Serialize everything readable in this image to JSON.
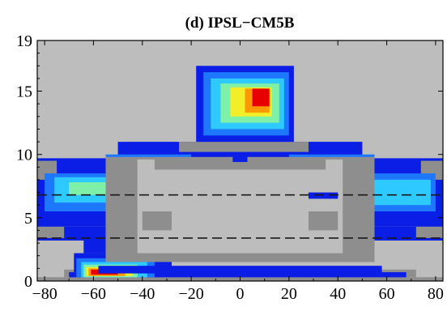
{
  "chart_data": {
    "type": "heatmap",
    "title": "(d) IPSL−CM5B",
    "xlabel": "",
    "ylabel": "",
    "xlim": [
      -83,
      83
    ],
    "ylim": [
      0,
      19
    ],
    "x_ticks": [
      -80,
      -60,
      -40,
      -20,
      0,
      20,
      40,
      60,
      80
    ],
    "x_tick_labels": [
      "−80",
      "−60",
      "−40",
      "−20",
      "0",
      "20",
      "40",
      "60",
      "80"
    ],
    "y_ticks": [
      0,
      5,
      10,
      15,
      19
    ],
    "y_tick_labels": [
      "0",
      "5",
      "10",
      "15",
      "19"
    ],
    "reference_lines": [
      {
        "y": 6.8,
        "style": "dashed"
      },
      {
        "y": 3.4,
        "style": "dashed"
      }
    ],
    "background_level": 0,
    "levels": [
      {
        "level": 0,
        "color": "#bdbdbd"
      },
      {
        "level": 1,
        "color": "#8e8e8e"
      },
      {
        "level": 2,
        "color": "#0a1ee6"
      },
      {
        "level": 3,
        "color": "#1e78ff"
      },
      {
        "level": 4,
        "color": "#2ec9ff"
      },
      {
        "level": 5,
        "color": "#7ff0a8"
      },
      {
        "level": 6,
        "color": "#f2ee2a"
      },
      {
        "level": 7,
        "color": "#ff9900"
      },
      {
        "level": 8,
        "color": "#e60000"
      }
    ],
    "regions": [
      {
        "level": 1,
        "x": [
          -83,
          83
        ],
        "y": [
          0.0,
          0.3
        ]
      },
      {
        "level": 1,
        "x": [
          -72,
          72
        ],
        "y": [
          0.3,
          0.9
        ]
      },
      {
        "level": 2,
        "x": [
          -70,
          68
        ],
        "y": [
          0.3,
          0.7
        ]
      },
      {
        "level": 2,
        "x": [
          -68,
          -28
        ],
        "y": [
          0.7,
          2.2
        ]
      },
      {
        "level": 3,
        "x": [
          -67,
          -35
        ],
        "y": [
          0.3,
          1.8
        ]
      },
      {
        "level": 4,
        "x": [
          -65,
          -38
        ],
        "y": [
          0.3,
          1.5
        ]
      },
      {
        "level": 5,
        "x": [
          -64,
          -42
        ],
        "y": [
          0.3,
          1.3
        ]
      },
      {
        "level": 6,
        "x": [
          -63,
          -44
        ],
        "y": [
          0.4,
          1.1
        ]
      },
      {
        "level": 7,
        "x": [
          -62,
          -47
        ],
        "y": [
          0.4,
          1.0
        ]
      },
      {
        "level": 8,
        "x": [
          -61,
          -50
        ],
        "y": [
          0.5,
          0.9
        ]
      },
      {
        "level": 2,
        "x": [
          -83,
          83
        ],
        "y": [
          3.2,
          4.3
        ]
      },
      {
        "level": 2,
        "x": [
          -64,
          -54
        ],
        "y": [
          2.2,
          3.2
        ]
      },
      {
        "level": 1,
        "x": [
          -83,
          -72
        ],
        "y": [
          3.4,
          4.3
        ]
      },
      {
        "level": 1,
        "x": [
          72,
          83
        ],
        "y": [
          3.4,
          4.3
        ]
      },
      {
        "level": 2,
        "x": [
          -83,
          -30
        ],
        "y": [
          4.3,
          9.7
        ]
      },
      {
        "level": 2,
        "x": [
          30,
          83
        ],
        "y": [
          4.3,
          9.7
        ]
      },
      {
        "level": 2,
        "x": [
          -70,
          70
        ],
        "y": [
          6.3,
          7.6
        ]
      },
      {
        "level": 2,
        "x": [
          -50,
          50
        ],
        "y": [
          9.5,
          11.0
        ]
      },
      {
        "level": 1,
        "x": [
          -83,
          -75
        ],
        "y": [
          8.0,
          9.5
        ]
      },
      {
        "level": 1,
        "x": [
          74,
          83
        ],
        "y": [
          8.0,
          9.5
        ]
      },
      {
        "level": 3,
        "x": [
          -80,
          -45
        ],
        "y": [
          5.5,
          8.5
        ]
      },
      {
        "level": 4,
        "x": [
          -76,
          -50
        ],
        "y": [
          6.2,
          8.2
        ]
      },
      {
        "level": 5,
        "x": [
          -70,
          -55
        ],
        "y": [
          6.8,
          7.8
        ]
      },
      {
        "level": 3,
        "x": [
          -55,
          -20
        ],
        "y": [
          8.5,
          10.0
        ]
      },
      {
        "level": 4,
        "x": [
          -50,
          -28
        ],
        "y": [
          8.8,
          9.6
        ]
      },
      {
        "level": 3,
        "x": [
          45,
          80
        ],
        "y": [
          5.5,
          8.5
        ]
      },
      {
        "level": 4,
        "x": [
          50,
          78
        ],
        "y": [
          6.0,
          8.0
        ]
      },
      {
        "level": 3,
        "x": [
          20,
          55
        ],
        "y": [
          8.5,
          10.0
        ]
      },
      {
        "level": 4,
        "x": [
          28,
          50
        ],
        "y": [
          8.8,
          9.6
        ]
      },
      {
        "level": 1,
        "x": [
          -25,
          28
        ],
        "y": [
          10.2,
          11.0
        ]
      },
      {
        "level": 2,
        "x": [
          -18,
          22
        ],
        "y": [
          11.0,
          17.0
        ]
      },
      {
        "level": 3,
        "x": [
          -15,
          20
        ],
        "y": [
          11.5,
          16.5
        ]
      },
      {
        "level": 4,
        "x": [
          -12,
          18
        ],
        "y": [
          12.0,
          16.0
        ]
      },
      {
        "level": 5,
        "x": [
          -8,
          16
        ],
        "y": [
          12.5,
          15.6
        ]
      },
      {
        "level": 6,
        "x": [
          -4,
          13
        ],
        "y": [
          13.0,
          15.3
        ]
      },
      {
        "level": 7,
        "x": [
          2,
          12
        ],
        "y": [
          13.3,
          15.2
        ]
      },
      {
        "level": 8,
        "x": [
          5,
          12
        ],
        "y": [
          13.8,
          15.2
        ]
      },
      {
        "level": 1,
        "x": [
          -55,
          55
        ],
        "y": [
          1.5,
          9.8
        ]
      },
      {
        "level": 0,
        "x": [
          -42,
          42
        ],
        "y": [
          2.2,
          9.6
        ]
      },
      {
        "level": 1,
        "x": [
          -40,
          -28
        ],
        "y": [
          4.0,
          5.5
        ]
      },
      {
        "level": 1,
        "x": [
          28,
          40
        ],
        "y": [
          4.0,
          5.5
        ]
      },
      {
        "level": 1,
        "x": [
          -35,
          35
        ],
        "y": [
          8.8,
          9.6
        ]
      },
      {
        "level": 2,
        "x": [
          28,
          40
        ],
        "y": [
          6.5,
          7.0
        ]
      },
      {
        "level": 2,
        "x": [
          -3,
          3
        ],
        "y": [
          9.4,
          9.9
        ]
      },
      {
        "level": 2,
        "x": [
          -58,
          58
        ],
        "y": [
          0.6,
          1.2
        ]
      }
    ]
  }
}
